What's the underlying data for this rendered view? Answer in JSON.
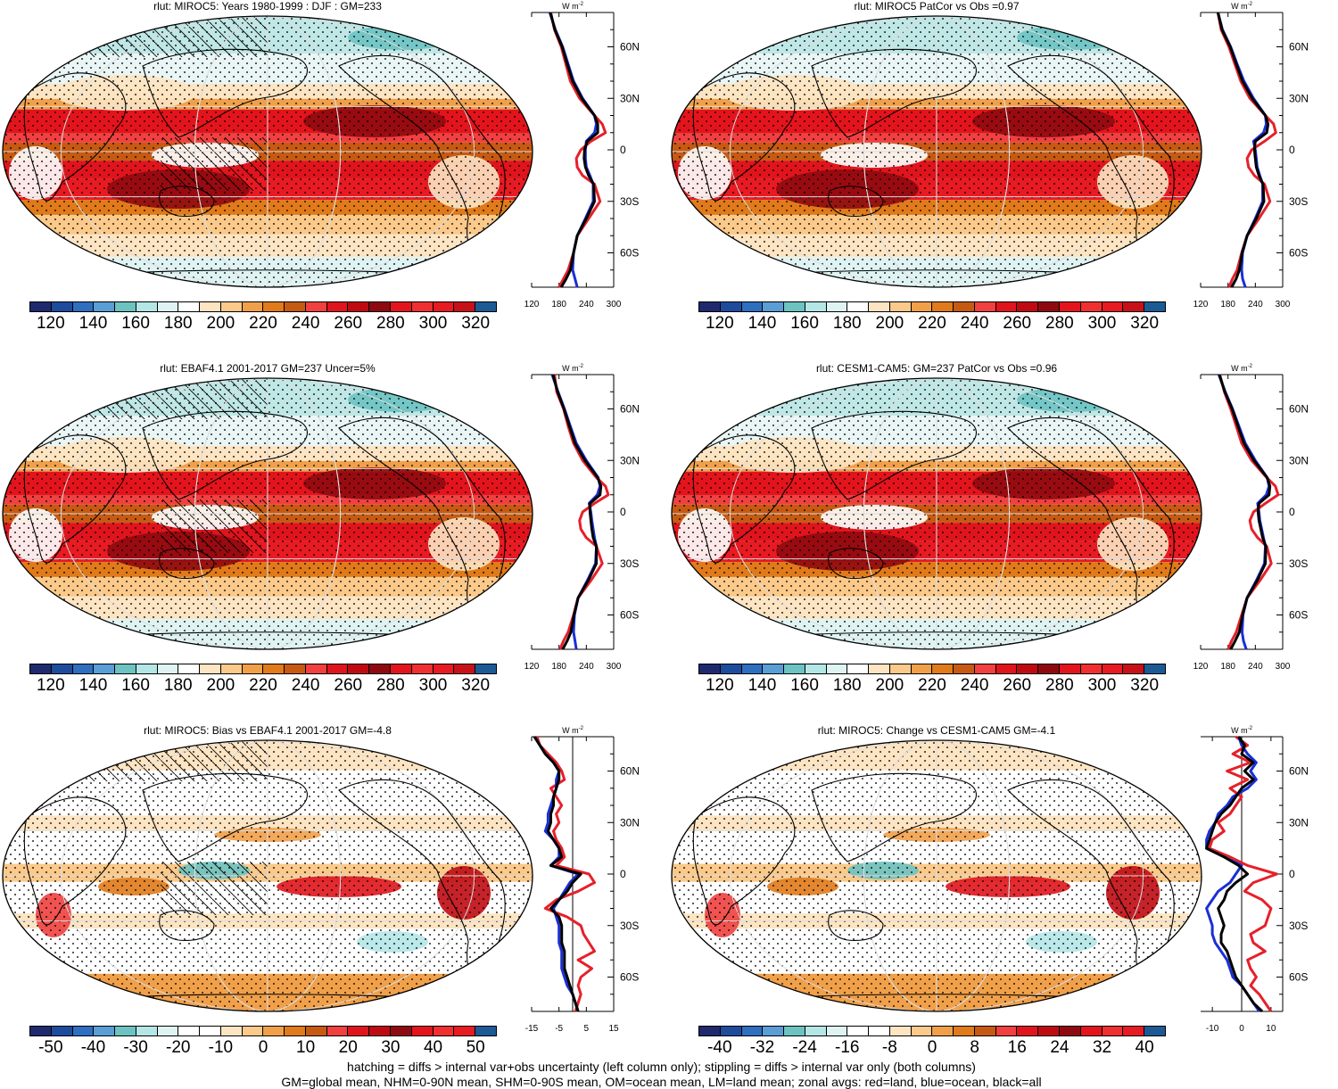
{
  "footer": {
    "line1": "hatching = diffs > internal var+obs uncertainty (left column only); stippling = diffs > internal var only (both columns)",
    "line2": "GM=global mean, NHM=0-90N mean, SHM=0-90S mean, OM=ocean mean, LM=land mean; zonal avgs: red=land, blue=ocean, black=all"
  },
  "colors": {
    "abs_scale": [
      "#1f2a6e",
      "#1e4c9c",
      "#2e6fc0",
      "#5a9ed6",
      "#6cc3c2",
      "#b4e6e6",
      "#dff3f3",
      "#ffffff",
      "#fde4c2",
      "#fbc98a",
      "#f1a04a",
      "#e07a1a",
      "#c75a12",
      "#f04040",
      "#e0141c",
      "#c00a12",
      "#8f0a10",
      "#e4141c",
      "#f03030",
      "#e81a22",
      "#c81018",
      "#1c5a96"
    ],
    "diff_scale": [
      "#1f2a6e",
      "#1e4c9c",
      "#2e6fc0",
      "#5a9ed6",
      "#6cc3c2",
      "#b4e6e6",
      "#dff3f3",
      "#ffffff",
      "#ffffff",
      "#fde4c2",
      "#fbc98a",
      "#f1a04a",
      "#e07a1a",
      "#c75a12",
      "#f04040",
      "#e0141c",
      "#c00a12",
      "#8f0a10",
      "#e4141c",
      "#f03030",
      "#e81a22",
      "#1c5a96"
    ],
    "land": "#e6202a",
    "ocean": "#1a2fd6",
    "all": "#000000"
  },
  "chart_data": [
    {
      "type": "heatmap",
      "title": "rlut: MIROC5: Years 1980-1999 : DJF : GM=233",
      "colorbar": {
        "ticks": [
          "120",
          "140",
          "160",
          "180",
          "200",
          "220",
          "240",
          "260",
          "280",
          "300",
          "320"
        ]
      },
      "zonal": {
        "units": "W m",
        "units_sup": "-2",
        "xlim": [
          120,
          300
        ],
        "xticks": [
          "120",
          "180",
          "240",
          "300"
        ],
        "lat_ticks": [
          "60N",
          "30N",
          "0",
          "30S",
          "60S"
        ],
        "lat": [
          80,
          70,
          60,
          50,
          40,
          30,
          20,
          15,
          10,
          5,
          0,
          -5,
          -10,
          -15,
          -20,
          -30,
          -40,
          -50,
          -60,
          -70,
          -75,
          -80
        ],
        "land": [
          162,
          170,
          185,
          195,
          205,
          225,
          258,
          275,
          282,
          250,
          228,
          218,
          220,
          232,
          258,
          270,
          245,
          220,
          212,
          200,
          190,
          180
        ],
        "ocean": [
          160,
          172,
          188,
          200,
          212,
          232,
          258,
          262,
          258,
          240,
          238,
          238,
          240,
          248,
          255,
          255,
          238,
          220,
          212,
          210,
          215,
          220
        ],
        "all": [
          161,
          171,
          187,
          198,
          210,
          230,
          258,
          265,
          265,
          242,
          236,
          235,
          238,
          245,
          256,
          258,
          240,
          220,
          212,
          205,
          196,
          185
        ]
      }
    },
    {
      "type": "heatmap",
      "title": "rlut: MIROC5 PatCor vs Obs =0.97",
      "colorbar": {
        "ticks": [
          "120",
          "140",
          "160",
          "180",
          "200",
          "220",
          "240",
          "260",
          "280",
          "300",
          "320"
        ]
      },
      "zonal": {
        "units": "W m",
        "units_sup": "-2",
        "xlim": [
          120,
          300
        ],
        "xticks": [
          "120",
          "180",
          "240",
          "300"
        ],
        "lat_ticks": [
          "60N",
          "30N",
          "0",
          "30S",
          "60S"
        ],
        "lat": [
          80,
          70,
          60,
          50,
          40,
          30,
          20,
          15,
          10,
          5,
          0,
          -5,
          -10,
          -15,
          -20,
          -30,
          -40,
          -50,
          -60,
          -70,
          -75,
          -80
        ],
        "land": [
          158,
          165,
          182,
          195,
          208,
          228,
          262,
          280,
          285,
          260,
          232,
          222,
          225,
          238,
          260,
          272,
          248,
          222,
          210,
          200,
          190,
          182
        ],
        "ocean": [
          158,
          168,
          186,
          200,
          215,
          236,
          262,
          264,
          258,
          236,
          240,
          242,
          244,
          250,
          256,
          256,
          240,
          222,
          212,
          210,
          212,
          218
        ],
        "all": [
          158,
          167,
          185,
          198,
          212,
          233,
          262,
          268,
          265,
          240,
          238,
          240,
          242,
          248,
          257,
          259,
          242,
          222,
          211,
          205,
          198,
          188
        ]
      }
    },
    {
      "type": "heatmap",
      "title": "rlut: EBAF4.1 2001-2017 GM=237 Uncer=5%",
      "colorbar": {
        "ticks": [
          "120",
          "140",
          "160",
          "180",
          "200",
          "220",
          "240",
          "260",
          "280",
          "300",
          "320"
        ]
      },
      "zonal": {
        "units": "W m",
        "units_sup": "-2",
        "xlim": [
          120,
          300
        ],
        "xticks": [
          "120",
          "180",
          "240",
          "300"
        ],
        "lat_ticks": [
          "60N",
          "30N",
          "0",
          "30S",
          "60S"
        ],
        "lat": [
          80,
          70,
          60,
          50,
          40,
          30,
          20,
          15,
          10,
          5,
          0,
          -5,
          -10,
          -15,
          -20,
          -30,
          -40,
          -50,
          -60,
          -70,
          -75,
          -80
        ],
        "land": [
          170,
          175,
          190,
          200,
          212,
          232,
          262,
          282,
          288,
          258,
          232,
          225,
          228,
          240,
          262,
          275,
          250,
          222,
          212,
          200,
          190,
          182
        ],
        "ocean": [
          165,
          178,
          192,
          205,
          218,
          240,
          266,
          270,
          264,
          246,
          250,
          252,
          255,
          258,
          262,
          260,
          242,
          222,
          214,
          212,
          215,
          218
        ],
        "all": [
          167,
          177,
          191,
          203,
          215,
          237,
          265,
          272,
          270,
          248,
          248,
          250,
          252,
          255,
          262,
          262,
          244,
          222,
          213,
          206,
          198,
          188
        ]
      }
    },
    {
      "type": "heatmap",
      "title": "rlut: CESM1-CAM5: GM=237 PatCor vs Obs =0.96",
      "colorbar": {
        "ticks": [
          "120",
          "140",
          "160",
          "180",
          "200",
          "220",
          "240",
          "260",
          "280",
          "300",
          "320"
        ]
      },
      "zonal": {
        "units": "W m",
        "units_sup": "-2",
        "xlim": [
          120,
          300
        ],
        "xticks": [
          "120",
          "180",
          "240",
          "300"
        ],
        "lat_ticks": [
          "60N",
          "30N",
          "0",
          "30S",
          "60S"
        ],
        "lat": [
          80,
          70,
          60,
          50,
          40,
          30,
          20,
          15,
          10,
          5,
          0,
          -5,
          -10,
          -15,
          -20,
          -30,
          -40,
          -50,
          -60,
          -70,
          -75,
          -80
        ],
        "land": [
          162,
          172,
          186,
          198,
          210,
          232,
          265,
          284,
          290,
          262,
          236,
          228,
          232,
          245,
          265,
          275,
          250,
          222,
          210,
          198,
          188,
          180
        ],
        "ocean": [
          160,
          174,
          190,
          204,
          218,
          240,
          266,
          270,
          264,
          245,
          248,
          250,
          254,
          258,
          262,
          260,
          242,
          222,
          213,
          211,
          214,
          220
        ],
        "all": [
          161,
          173,
          189,
          202,
          215,
          237,
          266,
          272,
          270,
          248,
          246,
          248,
          252,
          256,
          263,
          262,
          244,
          222,
          212,
          205,
          196,
          186
        ]
      }
    },
    {
      "type": "heatmap",
      "title": "rlut: MIROC5: Bias vs EBAF4.1 2001-2017 GM=-4.8",
      "colorbar": {
        "ticks": [
          "-50",
          "-40",
          "-30",
          "-20",
          "-10",
          "0",
          "10",
          "20",
          "30",
          "40",
          "50"
        ]
      },
      "zonal": {
        "units": "W m",
        "units_sup": "-2",
        "xlim": [
          -15,
          15
        ],
        "xticks": [
          "-15",
          "-5",
          "5",
          "15"
        ],
        "zero_line": true,
        "lat_ticks": [
          "60N",
          "30N",
          "0",
          "30S",
          "60S"
        ],
        "lat": [
          80,
          75,
          70,
          65,
          60,
          55,
          50,
          45,
          40,
          35,
          30,
          25,
          20,
          15,
          10,
          5,
          0,
          -5,
          -10,
          -15,
          -20,
          -25,
          -30,
          -35,
          -40,
          -45,
          -50,
          -55,
          -60,
          -65,
          -70,
          -75,
          -80
        ],
        "land": [
          -13,
          -12,
          -9,
          -6,
          -4,
          -3,
          -8,
          -6,
          -4,
          -6,
          -5,
          -7,
          -6,
          -4,
          -3,
          -6,
          6,
          8,
          2,
          -6,
          -10,
          -2,
          3,
          4,
          6,
          8,
          2,
          7,
          3,
          2,
          3,
          2,
          1
        ],
        "ocean": [
          -14,
          -12,
          -10,
          -7,
          -5,
          -6,
          -6,
          -7,
          -8,
          -9,
          -9,
          -10,
          -7,
          -5,
          -5,
          -8,
          2,
          -1,
          -3,
          -5,
          -7,
          -6,
          -5,
          -5,
          -5,
          -4,
          -4,
          -4,
          -3,
          -2,
          0,
          1,
          2
        ],
        "all": [
          -14,
          -12,
          -10,
          -7,
          -5,
          -5,
          -6,
          -7,
          -7,
          -8,
          -8,
          -9,
          -7,
          -5,
          -4,
          -8,
          3,
          0,
          -2,
          -5,
          -8,
          -5,
          -4,
          -4,
          -4,
          -3,
          -3,
          -3,
          -2,
          -1,
          0,
          1,
          2
        ]
      }
    },
    {
      "type": "heatmap",
      "title": "rlut: MIROC5: Change vs CESM1-CAM5 GM=-4.1",
      "colorbar": {
        "ticks": [
          "-40",
          "-32",
          "-24",
          "-16",
          "-8",
          "0",
          "8",
          "16",
          "24",
          "32",
          "40"
        ]
      },
      "zonal": {
        "units": "W m",
        "units_sup": "-2",
        "xlim": [
          -14,
          14
        ],
        "xticks": [
          "-10",
          "0",
          "10"
        ],
        "zero_line": true,
        "lat_ticks": [
          "60N",
          "30N",
          "0",
          "30S",
          "60S"
        ],
        "lat": [
          80,
          75,
          70,
          65,
          60,
          55,
          50,
          45,
          40,
          35,
          30,
          25,
          20,
          15,
          10,
          5,
          0,
          -5,
          -10,
          -15,
          -20,
          -25,
          -30,
          -35,
          -40,
          -45,
          -50,
          -55,
          -60,
          -65,
          -70,
          -75,
          -80
        ],
        "land": [
          -2,
          2,
          -3,
          3,
          -5,
          2,
          -4,
          0,
          -2,
          -4,
          -8,
          -6,
          -10,
          -11,
          -4,
          2,
          12,
          4,
          1,
          7,
          10,
          9,
          8,
          3,
          4,
          8,
          2,
          3,
          5,
          3,
          6,
          8,
          10
        ],
        "ocean": [
          -1,
          0,
          2,
          5,
          3,
          5,
          2,
          -3,
          -5,
          -8,
          -9,
          -11,
          -12,
          -12,
          -6,
          0,
          -2,
          -4,
          -8,
          -10,
          -12,
          -11,
          -10,
          -10,
          -9,
          -7,
          -5,
          -4,
          -3,
          0,
          2,
          4,
          6
        ],
        "all": [
          -1,
          1,
          0,
          4,
          1,
          4,
          0,
          -2,
          -4,
          -7,
          -9,
          -10,
          -11,
          -12,
          -6,
          -1,
          2,
          -2,
          -5,
          -6,
          -8,
          -7,
          -6,
          -7,
          -7,
          -5,
          -4,
          -3,
          -2,
          0,
          2,
          4,
          7
        ]
      }
    }
  ]
}
